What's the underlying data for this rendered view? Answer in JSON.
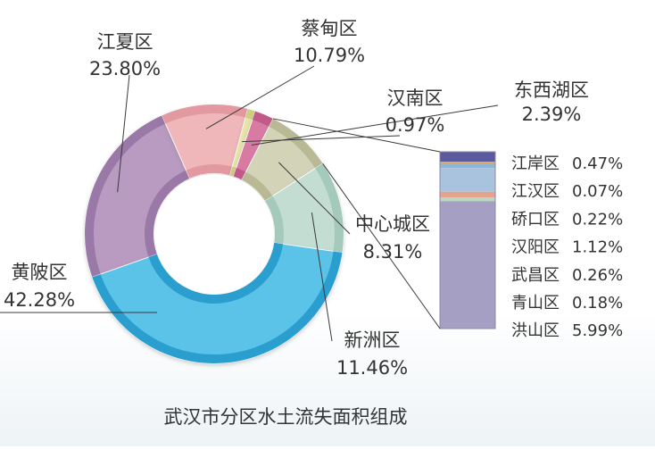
{
  "chart_data": {
    "type": "pie",
    "title": "武汉市分区水土流失面积组成",
    "series": [
      {
        "name": "江夏区",
        "value": 23.8,
        "value_label": "23.80%",
        "color": "#b99ac0",
        "edge": "#9a78a8"
      },
      {
        "name": "蔡甸区",
        "value": 10.79,
        "value_label": "10.79%",
        "color": "#f0b7ba",
        "edge": "#e29aa0"
      },
      {
        "name": "汉南区",
        "value": 0.97,
        "value_label": "0.97%",
        "color": "#e6e4a6",
        "edge": "#d0cd84"
      },
      {
        "name": "东西湖区",
        "value": 2.39,
        "value_label": "2.39%",
        "color": "#d97aa3",
        "edge": "#c25a89"
      },
      {
        "name": "中心城区",
        "value": 8.31,
        "value_label": "8.31%",
        "color": "#d3d3b7",
        "edge": "#b9b995"
      },
      {
        "name": "新洲区",
        "value": 11.46,
        "value_label": "11.46%",
        "color": "#c3ddd3",
        "edge": "#a5c9ba"
      },
      {
        "name": "黄陂区",
        "value": 42.28,
        "value_label": "42.28%",
        "color": "#5bc3e8",
        "edge": "#2c9fcf"
      }
    ],
    "breakdown": {
      "of": "中心城区",
      "items": [
        {
          "name": "江岸区",
          "value": 0.47,
          "value_label": "0.47%",
          "color": "#5c5a9e"
        },
        {
          "name": "江汉区",
          "value": 0.07,
          "value_label": "0.07%",
          "color": "#e8a13f"
        },
        {
          "name": "硚口区",
          "value": 0.22,
          "value_label": "0.22%",
          "color": "#8ab7d9"
        },
        {
          "name": "汉阳区",
          "value": 1.12,
          "value_label": "1.12%",
          "color": "#a9c3de"
        },
        {
          "name": "武昌区",
          "value": 0.26,
          "value_label": "0.26%",
          "color": "#e5a48a"
        },
        {
          "name": "青山区",
          "value": 0.18,
          "value_label": "0.18%",
          "color": "#bcd7c6"
        },
        {
          "name": "洪山区",
          "value": 5.99,
          "value_label": "5.99%",
          "color": "#a49fc3"
        }
      ]
    }
  }
}
